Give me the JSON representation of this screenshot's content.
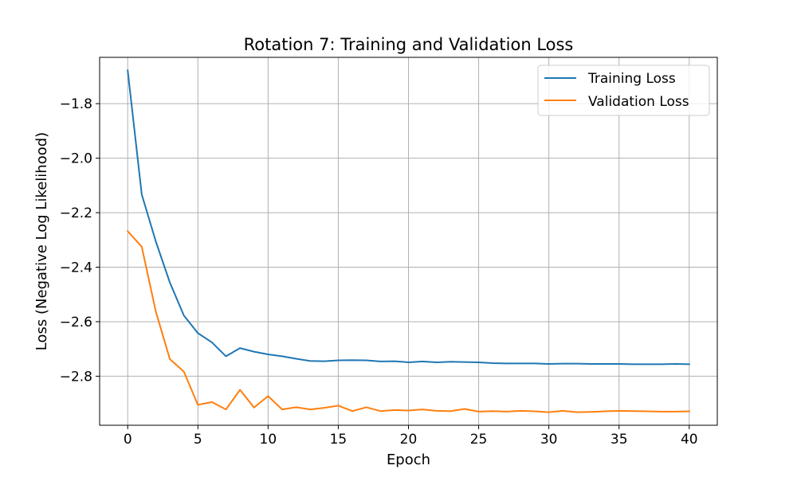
{
  "chart_data": {
    "type": "line",
    "title": "Rotation 7: Training and Validation Loss",
    "xlabel": "Epoch",
    "ylabel": "Loss (Negative Log Likelihood)",
    "xlim": [
      -2,
      42
    ],
    "ylim": [
      -2.98,
      -1.63
    ],
    "xticks": [
      0,
      5,
      10,
      15,
      20,
      25,
      30,
      35,
      40
    ],
    "xtick_labels": [
      "0",
      "5",
      "10",
      "15",
      "20",
      "25",
      "30",
      "35",
      "40"
    ],
    "yticks": [
      -1.8,
      -2.0,
      -2.2,
      -2.4,
      -2.6,
      -2.8
    ],
    "ytick_labels": [
      "−1.8",
      "−2.0",
      "−2.2",
      "−2.4",
      "−2.6",
      "−2.8"
    ],
    "grid": true,
    "legend_position": "top-right",
    "x": [
      0,
      1,
      2,
      3,
      4,
      5,
      6,
      7,
      8,
      9,
      10,
      11,
      12,
      13,
      14,
      15,
      16,
      17,
      18,
      19,
      20,
      21,
      22,
      23,
      24,
      25,
      26,
      27,
      28,
      29,
      30,
      31,
      32,
      33,
      34,
      35,
      36,
      37,
      38,
      39,
      40
    ],
    "series": [
      {
        "name": "Training Loss",
        "color": "#1f77b4",
        "values": [
          -1.678,
          -2.133,
          -2.305,
          -2.456,
          -2.577,
          -2.642,
          -2.676,
          -2.727,
          -2.697,
          -2.71,
          -2.72,
          -2.727,
          -2.736,
          -2.744,
          -2.745,
          -2.742,
          -2.741,
          -2.742,
          -2.746,
          -2.745,
          -2.749,
          -2.746,
          -2.749,
          -2.747,
          -2.748,
          -2.749,
          -2.752,
          -2.753,
          -2.753,
          -2.753,
          -2.755,
          -2.754,
          -2.754,
          -2.755,
          -2.755,
          -2.755,
          -2.756,
          -2.756,
          -2.756,
          -2.755,
          -2.756
        ]
      },
      {
        "name": "Validation Loss",
        "color": "#ff7f0e",
        "values": [
          -2.268,
          -2.325,
          -2.562,
          -2.737,
          -2.783,
          -2.905,
          -2.895,
          -2.922,
          -2.85,
          -2.915,
          -2.873,
          -2.922,
          -2.914,
          -2.922,
          -2.916,
          -2.908,
          -2.928,
          -2.914,
          -2.928,
          -2.924,
          -2.926,
          -2.922,
          -2.927,
          -2.928,
          -2.92,
          -2.93,
          -2.928,
          -2.93,
          -2.927,
          -2.929,
          -2.932,
          -2.927,
          -2.932,
          -2.931,
          -2.929,
          -2.927,
          -2.928,
          -2.929,
          -2.93,
          -2.93,
          -2.929
        ]
      }
    ]
  }
}
